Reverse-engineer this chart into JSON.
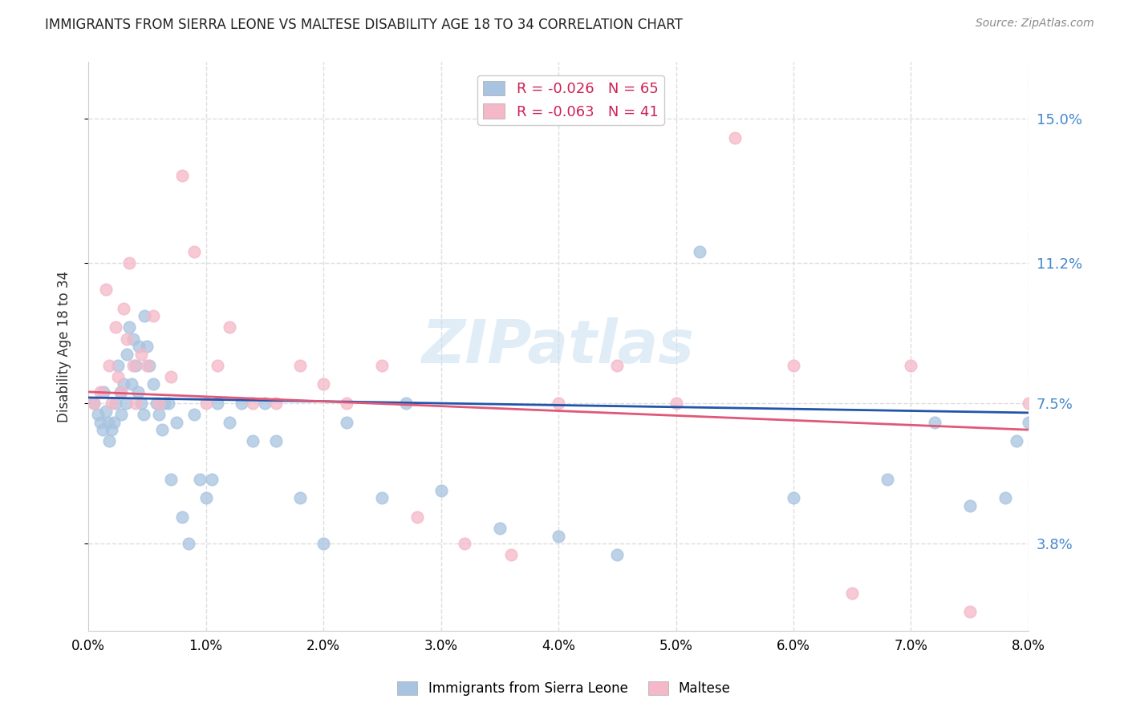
{
  "title": "IMMIGRANTS FROM SIERRA LEONE VS MALTESE DISABILITY AGE 18 TO 34 CORRELATION CHART",
  "source": "Source: ZipAtlas.com",
  "ylabel": "Disability Age 18 to 34",
  "x_tick_vals": [
    0.0,
    1.0,
    2.0,
    3.0,
    4.0,
    5.0,
    6.0,
    7.0,
    8.0
  ],
  "y_tick_vals": [
    3.8,
    7.5,
    11.2,
    15.0
  ],
  "xlim": [
    0.0,
    8.0
  ],
  "ylim": [
    1.5,
    16.5
  ],
  "series1_label": "Immigrants from Sierra Leone",
  "series1_R": "-0.026",
  "series1_N": "65",
  "series1_color": "#a8c4e0",
  "series1_line_color": "#2255aa",
  "series2_label": "Maltese",
  "series2_R": "-0.063",
  "series2_N": "41",
  "series2_color": "#f4b8c8",
  "series2_line_color": "#e05878",
  "background_color": "#ffffff",
  "grid_color": "#dddddd",
  "watermark": "ZIPatlas",
  "series1_x": [
    0.05,
    0.08,
    0.1,
    0.12,
    0.13,
    0.15,
    0.17,
    0.18,
    0.2,
    0.22,
    0.23,
    0.25,
    0.27,
    0.28,
    0.3,
    0.32,
    0.33,
    0.35,
    0.37,
    0.38,
    0.4,
    0.42,
    0.43,
    0.45,
    0.47,
    0.48,
    0.5,
    0.52,
    0.55,
    0.58,
    0.6,
    0.63,
    0.65,
    0.68,
    0.7,
    0.75,
    0.8,
    0.85,
    0.9,
    0.95,
    1.0,
    1.05,
    1.1,
    1.2,
    1.3,
    1.4,
    1.5,
    1.6,
    1.8,
    2.0,
    2.2,
    2.5,
    2.7,
    3.0,
    3.5,
    4.0,
    4.5,
    5.2,
    6.0,
    6.8,
    7.2,
    7.5,
    7.8,
    7.9,
    8.0
  ],
  "series1_y": [
    7.5,
    7.2,
    7.0,
    6.8,
    7.8,
    7.3,
    7.0,
    6.5,
    6.8,
    7.0,
    7.5,
    8.5,
    7.8,
    7.2,
    8.0,
    7.5,
    8.8,
    9.5,
    8.0,
    9.2,
    8.5,
    7.8,
    9.0,
    7.5,
    7.2,
    9.8,
    9.0,
    8.5,
    8.0,
    7.5,
    7.2,
    6.8,
    7.5,
    7.5,
    5.5,
    7.0,
    4.5,
    3.8,
    7.2,
    5.5,
    5.0,
    5.5,
    7.5,
    7.0,
    7.5,
    6.5,
    7.5,
    6.5,
    5.0,
    3.8,
    7.0,
    5.0,
    7.5,
    5.2,
    4.2,
    4.0,
    3.5,
    11.5,
    5.0,
    5.5,
    7.0,
    4.8,
    5.0,
    6.5,
    7.0
  ],
  "series2_x": [
    0.05,
    0.1,
    0.15,
    0.18,
    0.2,
    0.23,
    0.25,
    0.28,
    0.3,
    0.33,
    0.35,
    0.38,
    0.4,
    0.45,
    0.5,
    0.55,
    0.6,
    0.7,
    0.8,
    0.9,
    1.0,
    1.1,
    1.2,
    1.4,
    1.6,
    1.8,
    2.0,
    2.2,
    2.5,
    2.8,
    3.2,
    3.6,
    4.0,
    4.5,
    5.0,
    5.5,
    6.0,
    6.5,
    7.0,
    7.5,
    8.0
  ],
  "series2_y": [
    7.5,
    7.8,
    10.5,
    8.5,
    7.5,
    9.5,
    8.2,
    7.8,
    10.0,
    9.2,
    11.2,
    8.5,
    7.5,
    8.8,
    8.5,
    9.8,
    7.5,
    8.2,
    13.5,
    11.5,
    7.5,
    8.5,
    9.5,
    7.5,
    7.5,
    8.5,
    8.0,
    7.5,
    8.5,
    4.5,
    3.8,
    3.5,
    7.5,
    8.5,
    7.5,
    14.5,
    8.5,
    2.5,
    8.5,
    2.0,
    7.5
  ],
  "reg1_x0": 0.0,
  "reg1_y0": 7.65,
  "reg1_x1": 8.0,
  "reg1_y1": 7.25,
  "reg2_x0": 0.0,
  "reg2_y0": 7.8,
  "reg2_x1": 8.0,
  "reg2_y1": 6.8
}
